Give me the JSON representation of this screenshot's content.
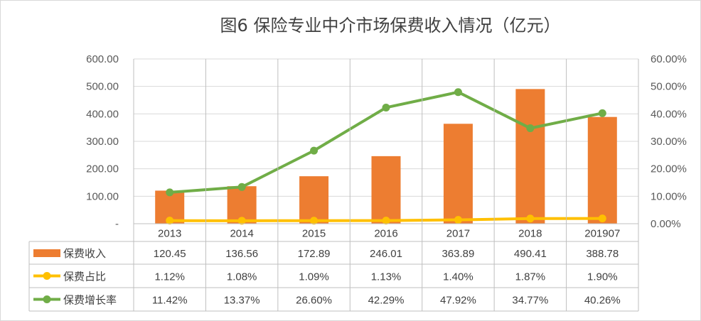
{
  "chart_data": {
    "type": "bar",
    "title": "图6  保险专业中介市场保费收入情况（亿元）",
    "categories": [
      "2013",
      "2014",
      "2015",
      "2016",
      "2017",
      "2018",
      "201907"
    ],
    "y_left": {
      "range": [
        0,
        600
      ],
      "ticks": [
        "-",
        "100.00",
        "200.00",
        "300.00",
        "400.00",
        "500.00",
        "600.00"
      ]
    },
    "y_right": {
      "range": [
        0,
        60
      ],
      "ticks": [
        "0.00%",
        "10.00%",
        "20.00%",
        "30.00%",
        "40.00%",
        "50.00%",
        "60.00%"
      ]
    },
    "grid": true,
    "legend": "data-table",
    "colors": {
      "bar": "#ed7d31",
      "share": "#ffc000",
      "growth": "#70ad47"
    },
    "series": [
      {
        "name": "保费收入",
        "type": "bar",
        "axis": "left",
        "values": [
          120.45,
          136.56,
          172.89,
          246.01,
          363.89,
          490.41,
          388.78
        ],
        "labels": [
          "120.45",
          "136.56",
          "172.89",
          "246.01",
          "363.89",
          "490.41",
          "388.78"
        ]
      },
      {
        "name": "保费占比",
        "type": "line",
        "axis": "right",
        "values": [
          1.12,
          1.08,
          1.09,
          1.13,
          1.4,
          1.87,
          1.9
        ],
        "labels": [
          "1.12%",
          "1.08%",
          "1.09%",
          "1.13%",
          "1.40%",
          "1.87%",
          "1.90%"
        ]
      },
      {
        "name": "保费增长率",
        "type": "line",
        "axis": "right",
        "values": [
          11.42,
          13.37,
          26.6,
          42.29,
          47.92,
          34.77,
          40.26
        ],
        "labels": [
          "11.42%",
          "13.37%",
          "26.60%",
          "42.29%",
          "47.92%",
          "34.77%",
          "40.26%"
        ]
      }
    ]
  }
}
